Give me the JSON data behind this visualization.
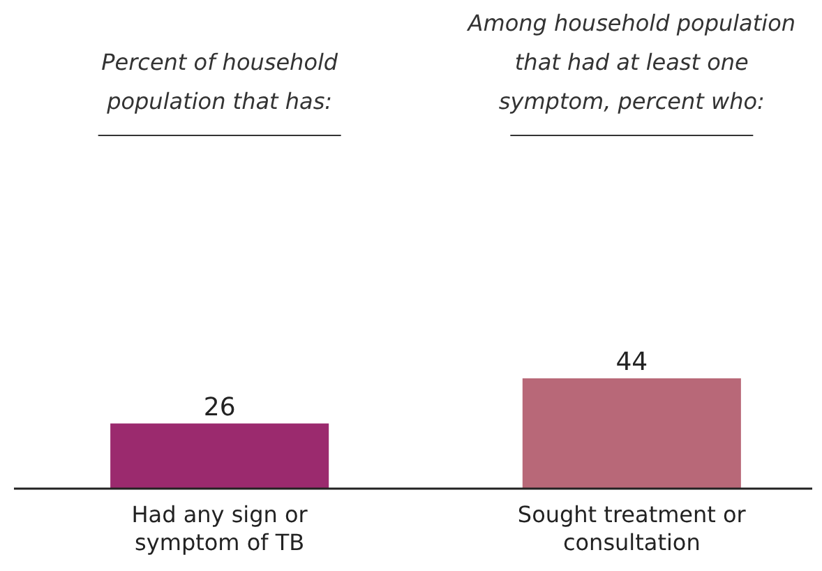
{
  "chart_data": {
    "type": "bar",
    "categories": [
      "Had any sign or symptom of TB",
      "Sought treatment or consultation"
    ],
    "values": [
      26,
      44
    ],
    "colors": [
      "#9b2a6e",
      "#b86878"
    ],
    "data_labels": true,
    "annotations": [
      "Percent of household population that has:",
      "Among household population that had at least one symptom, percent who:"
    ]
  }
}
